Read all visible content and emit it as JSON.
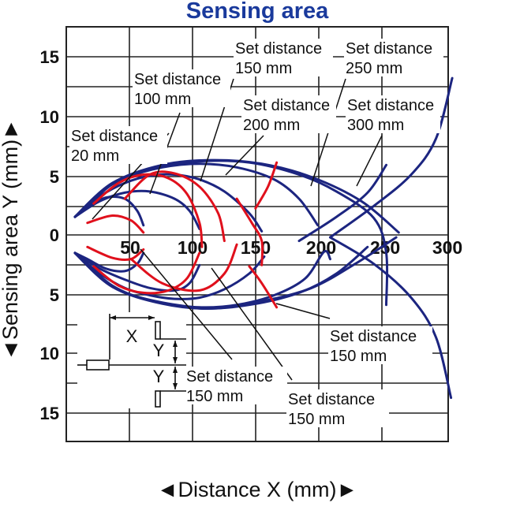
{
  "chart_data": {
    "type": "line",
    "title": "Sensing area",
    "xlabel": "◄Distance X (mm)►",
    "ylabel": "◄Sensing area Y (mm)►",
    "xlim": [
      -12,
      310
    ],
    "ylim": [
      -17,
      17
    ],
    "x_ticks": [
      "50",
      "100",
      "150",
      "200",
      "250",
      "300"
    ],
    "y_ticks_upper": [
      "15",
      "10",
      "5",
      "0"
    ],
    "y_ticks_lower": [
      "5",
      "10",
      "15"
    ],
    "grid": true,
    "legend": "none",
    "colors": {
      "outer": "#1c2580",
      "inner": "#e0101c",
      "title": "#1a3a9c"
    },
    "series": [
      {
        "line_type": "outer",
        "upper": [
          [
            0,
            1.5
          ],
          [
            10,
            2.3
          ],
          [
            25,
            3.1
          ],
          [
            40,
            3.0
          ],
          [
            50,
            2.0
          ],
          [
            55,
            0.8
          ]
        ],
        "lower": [
          [
            0,
            -1.5
          ],
          [
            10,
            -2.0
          ],
          [
            25,
            -2.8
          ],
          [
            40,
            -3.0
          ],
          [
            50,
            -2.4
          ],
          [
            55,
            -1.5
          ]
        ]
      },
      {
        "line_type": "outer",
        "upper": [
          [
            0,
            1.5
          ],
          [
            20,
            2.8
          ],
          [
            40,
            3.5
          ],
          [
            60,
            3.6
          ],
          [
            80,
            3.0
          ],
          [
            92,
            2.0
          ],
          [
            100,
            0.5
          ]
        ],
        "lower": [
          [
            0,
            -1.5
          ],
          [
            20,
            -2.8
          ],
          [
            40,
            -3.7
          ],
          [
            60,
            -4.4
          ],
          [
            80,
            -4.6
          ],
          [
            92,
            -4.0
          ],
          [
            100,
            -2.5
          ]
        ]
      },
      {
        "line_type": "outer",
        "upper": [
          [
            0,
            1.5
          ],
          [
            20,
            3.2
          ],
          [
            40,
            4.3
          ],
          [
            60,
            4.9
          ],
          [
            80,
            5.0
          ],
          [
            100,
            4.6
          ],
          [
            120,
            3.6
          ],
          [
            140,
            1.8
          ],
          [
            150,
            0.3
          ]
        ],
        "lower": [
          [
            0,
            -1.5
          ],
          [
            20,
            -3.2
          ],
          [
            40,
            -4.4
          ],
          [
            60,
            -5.0
          ],
          [
            80,
            -5.3
          ],
          [
            100,
            -5.2
          ],
          [
            120,
            -4.5
          ],
          [
            140,
            -3.2
          ],
          [
            152,
            -1.8
          ]
        ]
      },
      {
        "line_type": "outer",
        "upper": [
          [
            0,
            1.5
          ],
          [
            20,
            3.5
          ],
          [
            40,
            4.7
          ],
          [
            70,
            5.6
          ],
          [
            100,
            5.9
          ],
          [
            130,
            5.6
          ],
          [
            160,
            4.6
          ],
          [
            180,
            3.0
          ],
          [
            195,
            0.8
          ]
        ],
        "lower": [
          [
            0,
            -1.5
          ],
          [
            20,
            -3.5
          ],
          [
            40,
            -4.8
          ],
          [
            70,
            -5.6
          ],
          [
            100,
            -6.0
          ],
          [
            130,
            -5.8
          ],
          [
            160,
            -5.0
          ],
          [
            185,
            -3.6
          ],
          [
            200,
            -1.4
          ],
          [
            205,
            -2.0
          ]
        ]
      },
      {
        "line_type": "outer",
        "upper": [
          [
            0,
            1.5
          ],
          [
            30,
            4.2
          ],
          [
            60,
            5.5
          ],
          [
            100,
            6.1
          ],
          [
            140,
            6.0
          ],
          [
            180,
            5.0
          ],
          [
            210,
            3.6
          ],
          [
            240,
            1.4
          ],
          [
            250,
            -1.5
          ],
          [
            250,
            -5.8
          ]
        ],
        "lower": [
          [
            0,
            -1.5
          ],
          [
            30,
            -4.2
          ],
          [
            60,
            -5.4
          ],
          [
            100,
            -6.1
          ],
          [
            140,
            -5.8
          ],
          [
            180,
            -4.8
          ],
          [
            210,
            -3.2
          ],
          [
            235,
            -1.0
          ]
        ]
      },
      {
        "line_type": "outer",
        "upper": [
          [
            0,
            1.5
          ],
          [
            30,
            4.3
          ],
          [
            70,
            5.8
          ],
          [
            110,
            6.2
          ],
          [
            150,
            5.9
          ],
          [
            190,
            4.8
          ],
          [
            230,
            2.8
          ],
          [
            260,
            0.2
          ]
        ],
        "lower": [
          [
            0,
            -1.5
          ],
          [
            30,
            -4.3
          ],
          [
            70,
            -5.7
          ],
          [
            110,
            -6.1
          ],
          [
            150,
            -5.5
          ],
          [
            190,
            -4.4
          ],
          [
            225,
            -2.4
          ],
          [
            258,
            -0.2
          ]
        ]
      },
      {
        "line_type": "outer",
        "segment": [
          [
            180,
            -0.5
          ],
          [
            210,
            1.5
          ],
          [
            235,
            3.5
          ],
          [
            250,
            5.8
          ]
        ]
      },
      {
        "line_type": "outer",
        "segment": [
          [
            205,
            -0.2
          ],
          [
            240,
            2.4
          ],
          [
            270,
            5.0
          ],
          [
            290,
            8.0
          ],
          [
            303,
            13.0
          ]
        ]
      },
      {
        "line_type": "outer",
        "segment": [
          [
            205,
            -0.2
          ],
          [
            240,
            -2.4
          ],
          [
            270,
            -5.2
          ],
          [
            290,
            -8.5
          ],
          [
            302,
            -13.5
          ]
        ]
      },
      {
        "line_type": "inner",
        "upper": [
          [
            10,
            1.0
          ],
          [
            30,
            1.6
          ],
          [
            45,
            1.2
          ],
          [
            55,
            0.2
          ]
        ],
        "lower": [
          [
            10,
            -1.0
          ],
          [
            30,
            -1.9
          ],
          [
            45,
            -2.0
          ],
          [
            55,
            -1.2
          ]
        ]
      },
      {
        "line_type": "inner",
        "upper": [
          [
            15,
            2.6
          ],
          [
            35,
            4.3
          ],
          [
            55,
            5.0
          ],
          [
            75,
            4.7
          ],
          [
            90,
            3.4
          ],
          [
            100,
            1.0
          ],
          [
            102,
            -1.0
          ]
        ],
        "lower": [
          [
            15,
            -2.6
          ],
          [
            35,
            -4.2
          ],
          [
            55,
            -4.8
          ],
          [
            75,
            -4.6
          ],
          [
            90,
            -3.6
          ],
          [
            100,
            -1.5
          ]
        ]
      },
      {
        "line_type": "inner",
        "upper": [
          [
            40,
            3.0
          ],
          [
            60,
            5.0
          ],
          [
            80,
            5.1
          ],
          [
            100,
            4.0
          ],
          [
            115,
            1.8
          ],
          [
            120,
            -0.5
          ]
        ],
        "lower": [
          [
            45,
            -2.0
          ],
          [
            70,
            -4.0
          ],
          [
            100,
            -4.6
          ],
          [
            120,
            -3.2
          ],
          [
            130,
            -0.8
          ]
        ]
      },
      {
        "line_type": "inner",
        "segment": [
          [
            145,
            2.2
          ],
          [
            155,
            4.0
          ],
          [
            162,
            6.0
          ]
        ]
      },
      {
        "line_type": "inner",
        "segment": [
          [
            140,
            -2.6
          ],
          [
            150,
            -4.0
          ],
          [
            162,
            -6.0
          ]
        ]
      },
      {
        "line_type": "inner",
        "segment": [
          [
            130,
            3.0
          ],
          [
            142,
            1.0
          ],
          [
            150,
            -0.5
          ],
          [
            150,
            -2.5
          ]
        ]
      }
    ],
    "annotations": [
      {
        "lines": [
          "Set distance",
          "20 mm"
        ]
      },
      {
        "lines": [
          "Set distance",
          "100 mm"
        ]
      },
      {
        "lines": [
          "Set distance",
          "150 mm"
        ]
      },
      {
        "lines": [
          "Set distance",
          "200 mm"
        ]
      },
      {
        "lines": [
          "Set distance",
          "250 mm"
        ]
      },
      {
        "lines": [
          "Set distance",
          "300 mm"
        ]
      },
      {
        "lines": [
          "Set distance",
          "150 mm"
        ]
      },
      {
        "lines": [
          "Set distance",
          "150 mm"
        ]
      },
      {
        "lines": [
          "Set distance",
          "150 mm"
        ]
      }
    ],
    "inset": {
      "x_label": "X",
      "y_label": "Y"
    }
  }
}
